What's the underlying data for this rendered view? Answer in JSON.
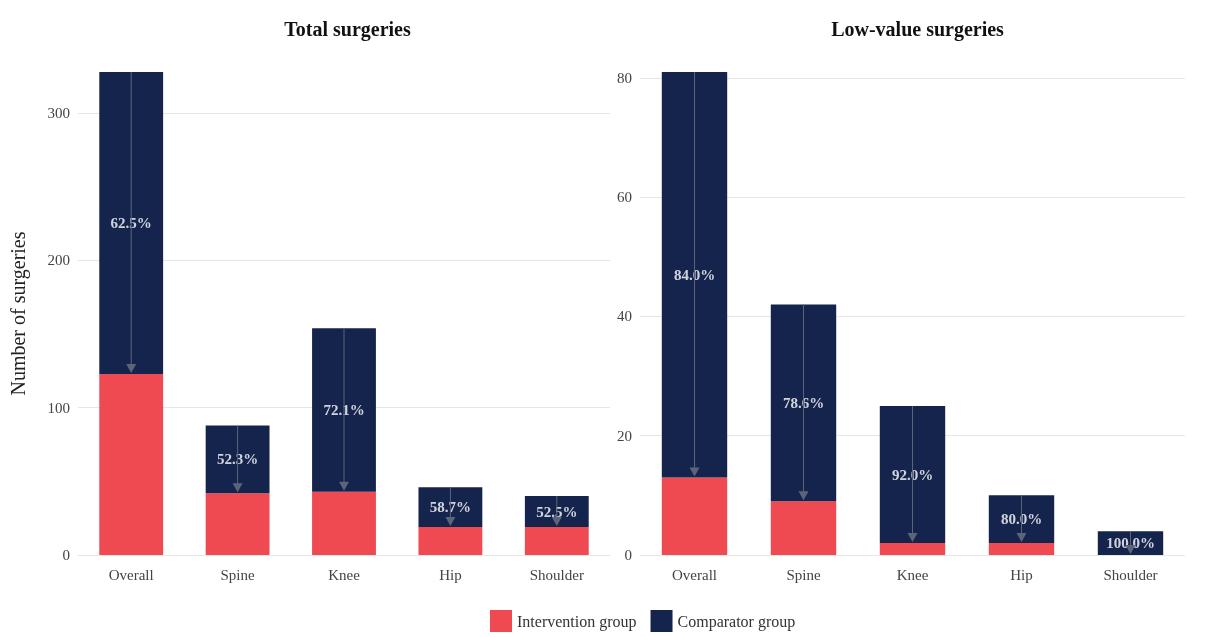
{
  "chart_data": [
    {
      "type": "bar",
      "title": "Total surgeries",
      "ylabel": "Number of surgeries",
      "categories": [
        "Overall",
        "Spine",
        "Knee",
        "Hip",
        "Shoulder"
      ],
      "stacked": true,
      "series": [
        {
          "color": "#ef4a52",
          "values": [
            123,
            42,
            43,
            19,
            19
          ]
        },
        {
          "color": "#15244d",
          "values": [
            205,
            46,
            111,
            27,
            21
          ]
        }
      ],
      "ylim": [
        0,
        328
      ],
      "yticks": [
        0,
        100,
        200,
        300
      ],
      "grid": "y",
      "annotations": [
        "62.5%",
        "52.3%",
        "72.1%",
        "58.7%",
        "52.5%"
      ]
    },
    {
      "type": "bar",
      "title": "Low-value surgeries",
      "categories": [
        "Overall",
        "Spine",
        "Knee",
        "Hip",
        "Shoulder"
      ],
      "stacked": true,
      "series": [
        {
          "name": "Intervention group",
          "color": "#ef4a52",
          "values": [
            13,
            9,
            2,
            2,
            0
          ]
        },
        {
          "name": "Comparator group",
          "color": "#15244d",
          "values": [
            68,
            33,
            23,
            8,
            4
          ]
        }
      ],
      "ylim": [
        0,
        81
      ],
      "yticks": [
        0,
        20,
        40,
        60,
        80
      ],
      "grid": "y",
      "legend": "bottom",
      "annotations": [
        "84.0%",
        "78.6%",
        "92.0%",
        "80.0%",
        "100.0%"
      ]
    }
  ]
}
